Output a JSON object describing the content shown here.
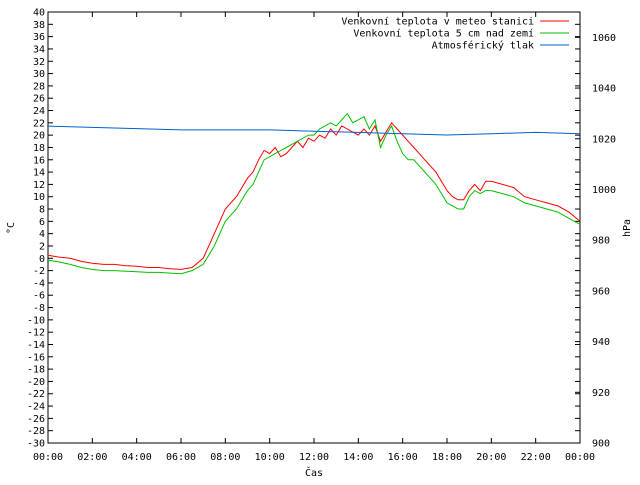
{
  "chart_data": {
    "type": "line",
    "xlabel": "Čas",
    "ylabel": "°C",
    "y2label": "hPa",
    "x_ticks": [
      "00:00",
      "02:00",
      "04:00",
      "06:00",
      "08:00",
      "10:00",
      "12:00",
      "14:00",
      "16:00",
      "18:00",
      "20:00",
      "22:00",
      "00:00"
    ],
    "xlim_hours": [
      0,
      24
    ],
    "ylim": [
      -30,
      40
    ],
    "y_ticks": [
      -30,
      -28,
      -26,
      -24,
      -22,
      -20,
      -18,
      -16,
      -14,
      -12,
      -10,
      -8,
      -6,
      -4,
      -2,
      0,
      2,
      4,
      6,
      8,
      10,
      12,
      14,
      16,
      18,
      20,
      22,
      24,
      26,
      28,
      30,
      32,
      34,
      36,
      38,
      40
    ],
    "y2lim": [
      900,
      1070
    ],
    "y2_ticks": [
      900,
      920,
      940,
      960,
      980,
      1000,
      1020,
      1040,
      1060
    ],
    "legend_position": "top-right",
    "grid": false,
    "series": [
      {
        "name": "Venkovní teplota v meteo stanici",
        "axis": "left",
        "color": "#ff0000",
        "x": [
          0,
          0.5,
          1,
          1.5,
          2,
          2.5,
          3,
          3.5,
          4,
          4.5,
          5,
          5.5,
          6,
          6.5,
          7,
          7.5,
          8,
          8.5,
          9,
          9.25,
          9.5,
          9.75,
          10,
          10.25,
          10.5,
          10.75,
          11,
          11.25,
          11.5,
          11.75,
          12,
          12.25,
          12.5,
          12.75,
          13,
          13.25,
          13.5,
          13.75,
          14,
          14.25,
          14.5,
          14.75,
          15,
          15.25,
          15.5,
          15.75,
          16,
          16.25,
          16.5,
          16.75,
          17,
          17.5,
          18,
          18.25,
          18.5,
          18.75,
          19,
          19.25,
          19.5,
          19.75,
          20,
          20.5,
          21,
          21.5,
          22,
          22.5,
          23,
          23.5,
          24
        ],
        "values": [
          0.5,
          0.2,
          0,
          -0.5,
          -0.8,
          -1,
          -1,
          -1.2,
          -1.3,
          -1.5,
          -1.5,
          -1.7,
          -1.8,
          -1.5,
          0,
          4,
          8,
          10,
          13,
          14,
          16,
          17.5,
          17,
          18,
          16.5,
          17,
          18,
          19,
          18,
          19.5,
          19,
          20,
          19.5,
          21,
          20,
          21.5,
          21,
          20.5,
          20,
          21,
          20,
          21.5,
          19,
          20.5,
          22,
          21,
          20,
          19,
          18,
          17,
          16,
          14,
          11,
          10,
          9.5,
          9.5,
          11,
          12,
          11,
          12.5,
          12.5,
          12,
          11.5,
          10,
          9.5,
          9,
          8.5,
          7.5,
          6
        ]
      },
      {
        "name": "Venkovní teplota 5 cm nad zemí",
        "axis": "left",
        "color": "#00c000",
        "x": [
          0,
          0.5,
          1,
          1.5,
          2,
          2.5,
          3,
          3.5,
          4,
          4.5,
          5,
          5.5,
          6,
          6.5,
          7,
          7.5,
          8,
          8.5,
          9,
          9.25,
          9.5,
          9.75,
          10,
          10.25,
          10.5,
          10.75,
          11,
          11.25,
          11.5,
          11.75,
          12,
          12.25,
          12.5,
          12.75,
          13,
          13.25,
          13.5,
          13.75,
          14,
          14.25,
          14.5,
          14.75,
          15,
          15.25,
          15.5,
          15.75,
          16,
          16.25,
          16.5,
          16.75,
          17,
          17.5,
          18,
          18.25,
          18.5,
          18.75,
          19,
          19.25,
          19.5,
          19.75,
          20,
          20.5,
          21,
          21.5,
          22,
          22.5,
          23,
          23.5,
          24
        ],
        "values": [
          -0.3,
          -0.6,
          -1,
          -1.5,
          -1.8,
          -2,
          -2,
          -2.1,
          -2.2,
          -2.3,
          -2.3,
          -2.4,
          -2.5,
          -2,
          -1,
          2,
          6,
          8,
          11,
          12,
          14,
          16,
          16.5,
          17,
          17.5,
          18,
          18.5,
          19,
          19.5,
          20,
          20,
          21,
          21.5,
          22,
          21.5,
          22.5,
          23.5,
          22,
          22.5,
          23,
          21,
          22.5,
          18,
          20,
          21.5,
          19,
          17,
          16,
          16,
          15,
          14,
          12,
          9,
          8.5,
          8,
          8,
          10,
          11,
          10.5,
          11,
          11,
          10.5,
          10,
          9,
          8.5,
          8,
          7.5,
          6.5,
          5.5
        ]
      },
      {
        "name": "Atmosférický tlak",
        "axis": "right",
        "color": "#0060d0",
        "x": [
          0,
          2,
          4,
          6,
          8,
          10,
          12,
          14,
          16,
          18,
          20,
          22,
          24
        ],
        "values": [
          1025,
          1024.5,
          1024,
          1023.5,
          1023.5,
          1023.5,
          1023,
          1022.5,
          1022,
          1021.5,
          1022,
          1022.5,
          1022
        ]
      }
    ]
  }
}
